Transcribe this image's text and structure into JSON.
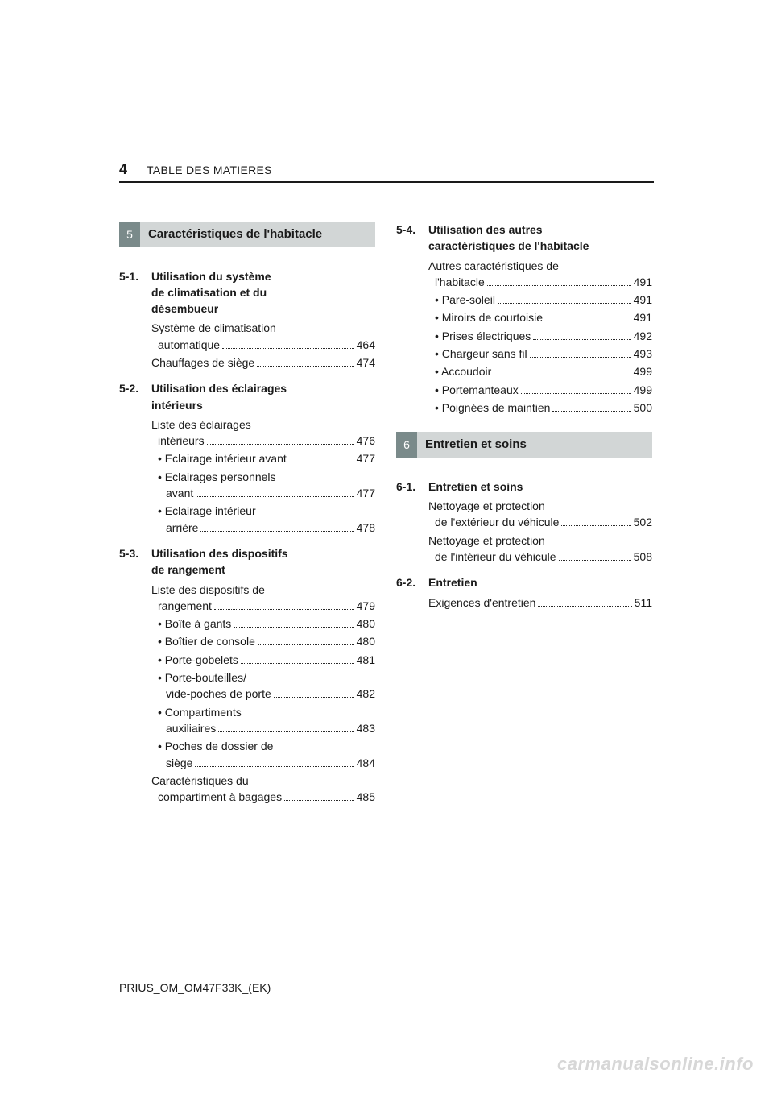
{
  "header": {
    "page_number": "4",
    "title": "TABLE DES MATIERES"
  },
  "chapters": {
    "five": {
      "number": "5",
      "title": "Caractéristiques de l'habitacle"
    },
    "six": {
      "number": "6",
      "title": "Entretien et soins"
    }
  },
  "sections": {
    "s51": {
      "num": "5-1.",
      "title_l1": "Utilisation du système",
      "title_l2": "de climatisation et du",
      "title_l3": "désembueur",
      "items": {
        "a_l1": "Système de climatisation",
        "a_l2": "automatique",
        "a_pg": "464",
        "b": "Chauffages de siège",
        "b_pg": "474"
      }
    },
    "s52": {
      "num": "5-2.",
      "title_l1": "Utilisation des éclairages",
      "title_l2": "intérieurs",
      "items": {
        "a_l1": "Liste des éclairages",
        "a_l2": "intérieurs",
        "a_pg": "476",
        "b": "• Eclairage intérieur avant",
        "b_pg": "477",
        "c_l1": "• Eclairages personnels",
        "c_l2": "avant",
        "c_pg": "477",
        "d_l1": "• Eclairage intérieur",
        "d_l2": "arrière",
        "d_pg": "478"
      }
    },
    "s53": {
      "num": "5-3.",
      "title_l1": "Utilisation des dispositifs",
      "title_l2": "de rangement",
      "items": {
        "a_l1": "Liste des dispositifs de",
        "a_l2": "rangement",
        "a_pg": "479",
        "b": "• Boîte à gants",
        "b_pg": "480",
        "c": "• Boîtier de console",
        "c_pg": "480",
        "d": "• Porte-gobelets",
        "d_pg": "481",
        "e_l1": "• Porte-bouteilles/",
        "e_l2": "vide-poches de porte",
        "e_pg": "482",
        "f_l1": "• Compartiments",
        "f_l2": "auxiliaires",
        "f_pg": "483",
        "g_l1": "• Poches de dossier de",
        "g_l2": "siège",
        "g_pg": "484",
        "h_l1": "Caractéristiques du",
        "h_l2": "compartiment à bagages",
        "h_pg": "485"
      }
    },
    "s54": {
      "num": "5-4.",
      "title_l1": "Utilisation des autres",
      "title_l2": "caractéristiques de l'habitacle",
      "items": {
        "a_l1": "Autres caractéristiques de",
        "a_l2": "l'habitacle",
        "a_pg": "491",
        "b": "• Pare-soleil",
        "b_pg": "491",
        "c": "• Miroirs de courtoisie",
        "c_pg": "491",
        "d": "• Prises électriques",
        "d_pg": "492",
        "e": "• Chargeur sans fil",
        "e_pg": "493",
        "f": "• Accoudoir",
        "f_pg": "499",
        "g": "• Portemanteaux",
        "g_pg": "499",
        "h": "• Poignées de maintien",
        "h_pg": "500"
      }
    },
    "s61": {
      "num": "6-1.",
      "title": "Entretien et soins",
      "items": {
        "a_l1": "Nettoyage et protection",
        "a_l2": "de l'extérieur du véhicule",
        "a_pg": "502",
        "b_l1": "Nettoyage et protection",
        "b_l2": "de l'intérieur du véhicule",
        "b_pg": "508"
      }
    },
    "s62": {
      "num": "6-2.",
      "title": "Entretien",
      "items": {
        "a": "Exigences d'entretien",
        "a_pg": "511"
      }
    }
  },
  "footer": "PRIUS_OM_OM47F33K_(EK)",
  "watermark": "carmanualsonline.info"
}
